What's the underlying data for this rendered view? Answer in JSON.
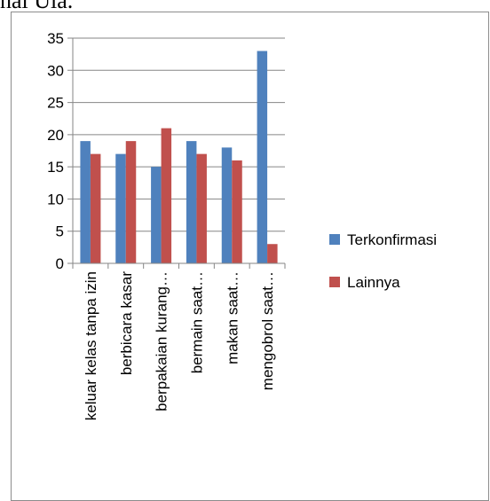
{
  "top_text": "nal Ula.",
  "chart_data": {
    "type": "bar",
    "title": "",
    "xlabel": "",
    "ylabel": "",
    "ylim": [
      0,
      35
    ],
    "yticks": [
      0,
      5,
      10,
      15,
      20,
      25,
      30,
      35
    ],
    "grid": "horizontal",
    "legend_position": "right",
    "categories": [
      "keluar kelas tanpa izin",
      "berbicara kasar",
      "berpakaian kurang…",
      "bermain saat…",
      "makan saat…",
      "mengobrol saat…"
    ],
    "series": [
      {
        "name": "Terkonfirmasi",
        "color": "#4f81bd",
        "values": [
          19,
          17,
          15,
          19,
          18,
          33
        ]
      },
      {
        "name": "Lainnya",
        "color": "#c0504d",
        "values": [
          17,
          19,
          21,
          17,
          16,
          3
        ]
      }
    ]
  }
}
